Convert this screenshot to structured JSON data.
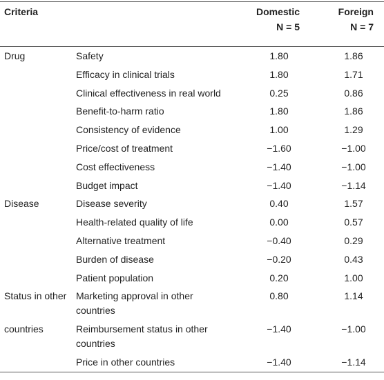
{
  "header": {
    "criteria": "Criteria",
    "domestic": "Domestic",
    "domestic_n": "N = 5",
    "foreign": "Foreign",
    "foreign_n": "N = 7"
  },
  "rows": [
    {
      "group": "Drug",
      "criterion": "Safety",
      "domestic": "1.80",
      "foreign": "1.86"
    },
    {
      "criterion": "Efficacy in clinical trials",
      "domestic": "1.80",
      "foreign": "1.71"
    },
    {
      "criterion": "Clinical effectiveness in real world",
      "domestic": "0.25",
      "foreign": "0.86"
    },
    {
      "criterion": "Benefit-to-harm ratio",
      "domestic": "1.80",
      "foreign": "1.86"
    },
    {
      "criterion": "Consistency of evidence",
      "domestic": "1.00",
      "foreign": "1.29"
    },
    {
      "criterion": "Price/cost of treatment",
      "domestic": "−1.60",
      "foreign": "−1.00"
    },
    {
      "criterion": "Cost effectiveness",
      "domestic": "−1.40",
      "foreign": "−1.00"
    },
    {
      "criterion": "Budget impact",
      "domestic": "−1.40",
      "foreign": "−1.14"
    },
    {
      "group": "Disease",
      "criterion": "Disease severity",
      "domestic": "0.40",
      "foreign": "1.57"
    },
    {
      "criterion": "Health-related quality of life",
      "domestic": "0.00",
      "foreign": "0.57"
    },
    {
      "criterion": "Alternative treatment",
      "domestic": "−0.40",
      "foreign": "0.29"
    },
    {
      "criterion": "Burden of disease",
      "domestic": "−0.20",
      "foreign": "0.43"
    },
    {
      "criterion": "Patient population",
      "domestic": "0.20",
      "foreign": "1.00"
    },
    {
      "group": "Status in other",
      "criterion": "Marketing approval in other countries",
      "domestic": "0.80",
      "foreign": "1.14"
    },
    {
      "group": "countries",
      "criterion": "Reimbursement status in other countries",
      "domestic": "−1.40",
      "foreign": "−1.00"
    },
    {
      "criterion": "Price in other countries",
      "domestic": "−1.40",
      "foreign": "−1.14"
    }
  ]
}
